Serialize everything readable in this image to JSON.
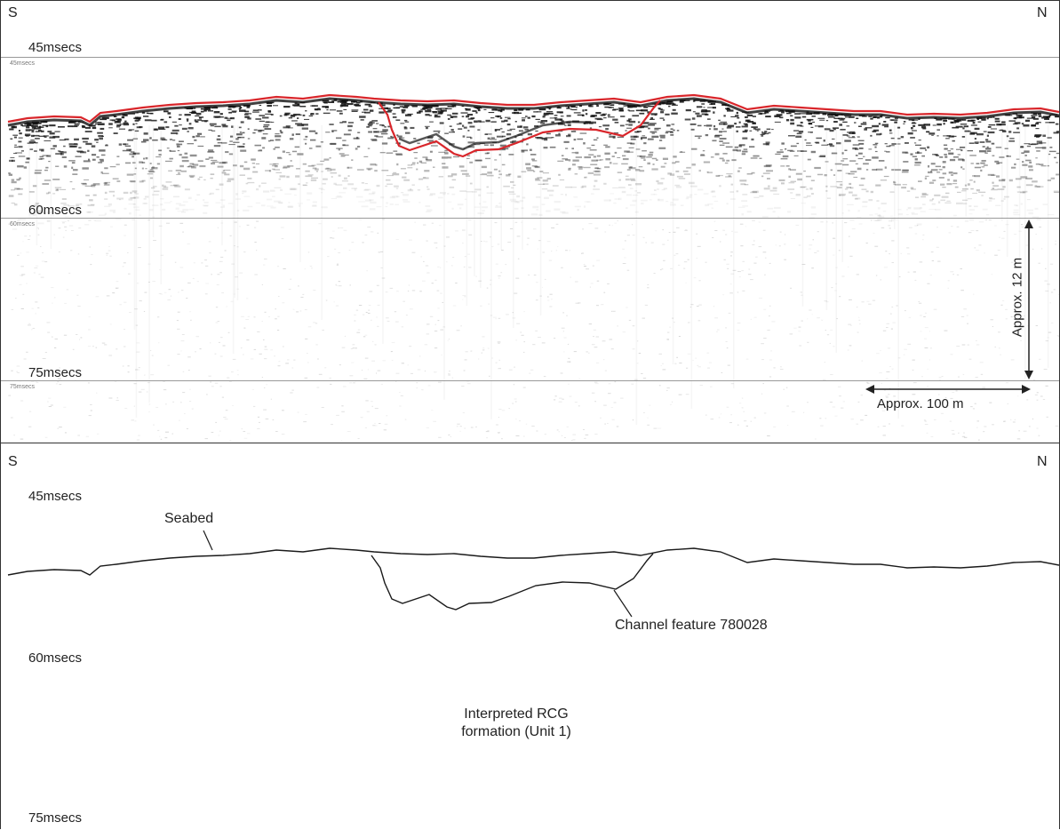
{
  "top_panel": {
    "dir_left": "S",
    "dir_right": "N",
    "time_labels": [
      "45msecs",
      "60msecs",
      "75msecs"
    ],
    "small_labels": [
      "45msecs",
      "60msecs",
      "75msecs"
    ],
    "vertical_scale": "Approx. 12 m",
    "horizontal_scale": "Approx. 100 m"
  },
  "bottom_panel": {
    "dir_left": "S",
    "dir_right": "N",
    "time_labels": [
      "45msecs",
      "60msecs",
      "75msecs"
    ],
    "seabed_label": "Seabed",
    "channel_label": "Channel feature 780028",
    "formation_label_line1": "Interpreted RCG",
    "formation_label_line2": "formation (Unit 1)"
  },
  "colors": {
    "interpretation": "#d9262b",
    "line": "#1a1a1a"
  }
}
